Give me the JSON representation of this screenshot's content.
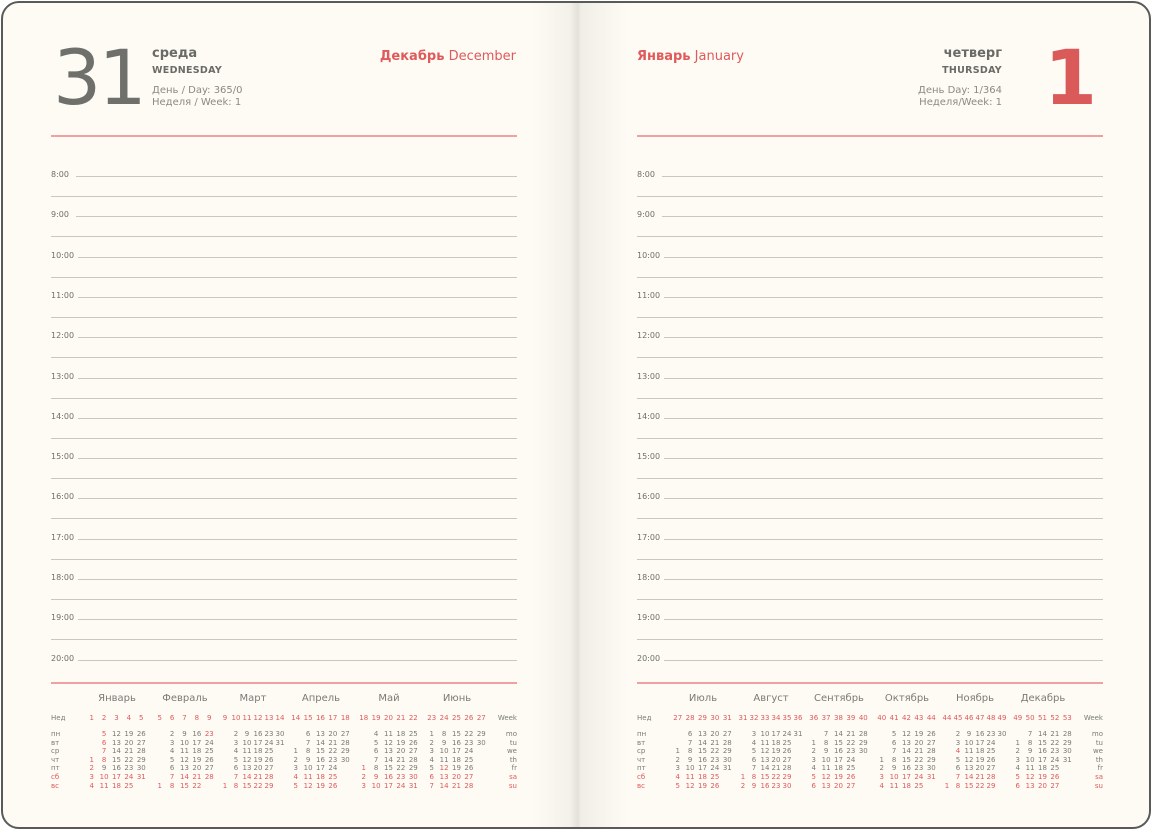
{
  "left_page": {
    "day_number": "31",
    "weekday_ru": "среда",
    "weekday_en": "WEDNESDAY",
    "day_of_year": "День / Day: 365/0",
    "week": "Неделя / Week: 1",
    "month_ru": "Декабрь",
    "month_en": "December"
  },
  "right_page": {
    "day_number": "1",
    "weekday_ru": "четверг",
    "weekday_en": "THURSDAY",
    "day_of_year": "День Day: 1/364",
    "week": "Неделя/Week: 1",
    "month_ru": "Январь",
    "month_en": "January"
  },
  "hours": [
    "8:00",
    "9:00",
    "10:00",
    "11:00",
    "12:00",
    "13:00",
    "14:00",
    "15:00",
    "16:00",
    "17:00",
    "18:00",
    "19:00",
    "20:00"
  ],
  "calendar_labels": {
    "week_ru": "Нед",
    "days_ru": [
      "пн",
      "вт",
      "ср",
      "чт",
      "пт",
      "сб",
      "вс"
    ],
    "week_en": "Week",
    "days_en": [
      "mo",
      "tu",
      "we",
      "th",
      "fr",
      "sa",
      "su"
    ]
  },
  "colors": {
    "accent": "#e0595c",
    "text": "#6e6e6a",
    "paper": "#fdfbf3"
  },
  "calendar_left": [
    {
      "name": "Январь",
      "weeks": [
        1,
        2,
        3,
        4,
        5
      ],
      "holidays": [
        1,
        2,
        5,
        6,
        7,
        8
      ],
      "rows": [
        [
          "",
          5,
          12,
          19,
          26
        ],
        [
          "",
          6,
          13,
          20,
          27
        ],
        [
          "",
          7,
          14,
          21,
          28
        ],
        [
          1,
          8,
          15,
          22,
          29
        ],
        [
          2,
          9,
          16,
          23,
          30
        ],
        [
          3,
          10,
          17,
          24,
          31
        ],
        [
          4,
          11,
          18,
          25,
          ""
        ]
      ]
    },
    {
      "name": "Февраль",
      "weeks": [
        5,
        6,
        7,
        8,
        9
      ],
      "holidays": [
        23
      ],
      "rows": [
        [
          "",
          2,
          9,
          16,
          23
        ],
        [
          "",
          3,
          10,
          17,
          24
        ],
        [
          "",
          4,
          11,
          18,
          25
        ],
        [
          "",
          5,
          12,
          19,
          26
        ],
        [
          "",
          6,
          13,
          20,
          27
        ],
        [
          "",
          7,
          14,
          21,
          28
        ],
        [
          1,
          8,
          15,
          22,
          ""
        ]
      ]
    },
    {
      "name": "Март",
      "weeks": [
        9,
        10,
        11,
        12,
        13,
        14
      ],
      "holidays": [],
      "rows": [
        [
          "",
          2,
          9,
          16,
          23,
          30
        ],
        [
          "",
          3,
          10,
          17,
          24,
          31
        ],
        [
          "",
          4,
          11,
          18,
          25,
          ""
        ],
        [
          "",
          5,
          12,
          19,
          26,
          ""
        ],
        [
          "",
          6,
          13,
          20,
          27,
          ""
        ],
        [
          "",
          7,
          14,
          21,
          28,
          ""
        ],
        [
          1,
          8,
          15,
          22,
          29,
          ""
        ]
      ]
    },
    {
      "name": "Апрель",
      "weeks": [
        14,
        15,
        16,
        17,
        18
      ],
      "holidays": [],
      "rows": [
        [
          "",
          6,
          13,
          20,
          27
        ],
        [
          "",
          7,
          14,
          21,
          28
        ],
        [
          1,
          8,
          15,
          22,
          29
        ],
        [
          2,
          9,
          16,
          23,
          30
        ],
        [
          3,
          10,
          17,
          24,
          ""
        ],
        [
          4,
          11,
          18,
          25,
          ""
        ],
        [
          5,
          12,
          19,
          26,
          ""
        ]
      ]
    },
    {
      "name": "Май",
      "weeks": [
        18,
        19,
        20,
        21,
        22
      ],
      "holidays": [
        1
      ],
      "rows": [
        [
          "",
          4,
          11,
          18,
          25
        ],
        [
          "",
          5,
          12,
          19,
          26
        ],
        [
          "",
          6,
          13,
          20,
          27
        ],
        [
          "",
          7,
          14,
          21,
          28
        ],
        [
          1,
          8,
          15,
          22,
          29
        ],
        [
          2,
          9,
          16,
          23,
          30
        ],
        [
          3,
          10,
          17,
          24,
          31
        ]
      ]
    },
    {
      "name": "Июнь",
      "weeks": [
        23,
        24,
        25,
        26,
        27
      ],
      "holidays": [
        12
      ],
      "rows": [
        [
          1,
          8,
          15,
          22,
          29
        ],
        [
          2,
          9,
          16,
          23,
          30
        ],
        [
          3,
          10,
          17,
          24,
          ""
        ],
        [
          4,
          11,
          18,
          25,
          ""
        ],
        [
          5,
          12,
          19,
          26,
          ""
        ],
        [
          6,
          13,
          20,
          27,
          ""
        ],
        [
          7,
          14,
          21,
          28,
          ""
        ]
      ]
    }
  ],
  "calendar_right": [
    {
      "name": "Июль",
      "weeks": [
        27,
        28,
        29,
        30,
        31
      ],
      "holidays": [],
      "rows": [
        [
          "",
          6,
          13,
          20,
          27
        ],
        [
          "",
          7,
          14,
          21,
          28
        ],
        [
          1,
          8,
          15,
          22,
          29
        ],
        [
          2,
          9,
          16,
          23,
          30
        ],
        [
          3,
          10,
          17,
          24,
          31
        ],
        [
          4,
          11,
          18,
          25,
          ""
        ],
        [
          5,
          12,
          19,
          26,
          ""
        ]
      ]
    },
    {
      "name": "Август",
      "weeks": [
        31,
        32,
        33,
        34,
        35,
        36
      ],
      "holidays": [],
      "rows": [
        [
          "",
          3,
          10,
          17,
          24,
          31
        ],
        [
          "",
          4,
          11,
          18,
          25,
          ""
        ],
        [
          "",
          5,
          12,
          19,
          26,
          ""
        ],
        [
          "",
          6,
          13,
          20,
          27,
          ""
        ],
        [
          "",
          7,
          14,
          21,
          28,
          ""
        ],
        [
          1,
          8,
          15,
          22,
          29,
          ""
        ],
        [
          2,
          9,
          16,
          23,
          30,
          ""
        ]
      ]
    },
    {
      "name": "Сентябрь",
      "weeks": [
        36,
        37,
        38,
        39,
        40
      ],
      "holidays": [],
      "rows": [
        [
          "",
          7,
          14,
          21,
          28
        ],
        [
          1,
          8,
          15,
          22,
          29
        ],
        [
          2,
          9,
          16,
          23,
          30
        ],
        [
          3,
          10,
          17,
          24,
          ""
        ],
        [
          4,
          11,
          18,
          25,
          ""
        ],
        [
          5,
          12,
          19,
          26,
          ""
        ],
        [
          6,
          13,
          20,
          27,
          ""
        ]
      ]
    },
    {
      "name": "Октябрь",
      "weeks": [
        40,
        41,
        42,
        43,
        44
      ],
      "holidays": [],
      "rows": [
        [
          "",
          5,
          12,
          19,
          26
        ],
        [
          "",
          6,
          13,
          20,
          27
        ],
        [
          "",
          7,
          14,
          21,
          28
        ],
        [
          1,
          8,
          15,
          22,
          29
        ],
        [
          2,
          9,
          16,
          23,
          30
        ],
        [
          3,
          10,
          17,
          24,
          31
        ],
        [
          4,
          11,
          18,
          25,
          ""
        ]
      ]
    },
    {
      "name": "Ноябрь",
      "weeks": [
        44,
        45,
        46,
        47,
        48,
        49
      ],
      "holidays": [
        4
      ],
      "rows": [
        [
          "",
          2,
          9,
          16,
          23,
          30
        ],
        [
          "",
          3,
          10,
          17,
          24,
          ""
        ],
        [
          "",
          4,
          11,
          18,
          25,
          ""
        ],
        [
          "",
          5,
          12,
          19,
          26,
          ""
        ],
        [
          "",
          6,
          13,
          20,
          27,
          ""
        ],
        [
          "",
          7,
          14,
          21,
          28,
          ""
        ],
        [
          1,
          8,
          15,
          22,
          29,
          ""
        ]
      ]
    },
    {
      "name": "Декабрь",
      "weeks": [
        49,
        50,
        51,
        52,
        53
      ],
      "holidays": [],
      "rows": [
        [
          "",
          7,
          14,
          21,
          28
        ],
        [
          1,
          8,
          15,
          22,
          29
        ],
        [
          2,
          9,
          16,
          23,
          30
        ],
        [
          3,
          10,
          17,
          24,
          31
        ],
        [
          4,
          11,
          18,
          25,
          ""
        ],
        [
          5,
          12,
          19,
          26,
          ""
        ],
        [
          6,
          13,
          20,
          27,
          ""
        ]
      ]
    }
  ]
}
